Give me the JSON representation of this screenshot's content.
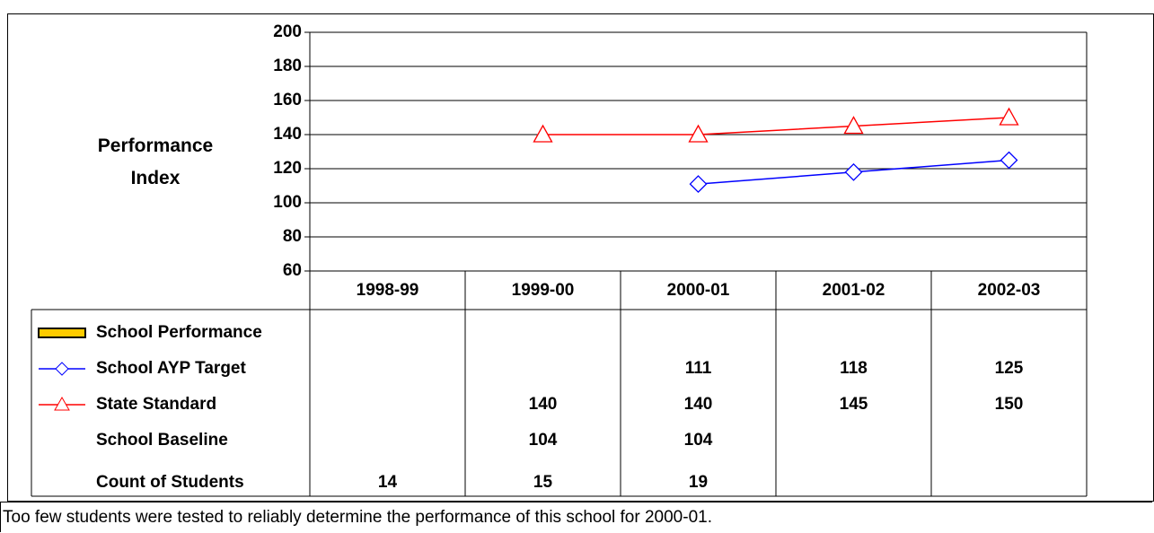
{
  "chart_data": {
    "type": "line",
    "y_label": "Performance Index",
    "categories": [
      "1998-99",
      "1999-00",
      "2000-01",
      "2001-02",
      "2002-03"
    ],
    "ylim": [
      60,
      200
    ],
    "yticks": [
      60,
      80,
      100,
      120,
      140,
      160,
      180,
      200
    ],
    "grid": true,
    "series": [
      {
        "name": "School Performance",
        "type": "bar",
        "color": "#ffcc00",
        "values": [
          null,
          null,
          null,
          null,
          null
        ]
      },
      {
        "name": "School AYP Target",
        "type": "line",
        "marker": "diamond",
        "color": "#0000ff",
        "values": [
          null,
          null,
          111,
          118,
          125
        ]
      },
      {
        "name": "State Standard",
        "type": "line",
        "marker": "triangle",
        "color": "#ff0000",
        "values": [
          null,
          140,
          140,
          145,
          150
        ]
      },
      {
        "name": "School Baseline",
        "type": "none",
        "values": [
          null,
          104,
          104,
          null,
          null
        ]
      },
      {
        "name": "Count of Students",
        "type": "none",
        "values": [
          14,
          15,
          19,
          null,
          null
        ]
      }
    ],
    "note": "Too few students were tested to reliably determine the performance of this school for 2000-01."
  }
}
